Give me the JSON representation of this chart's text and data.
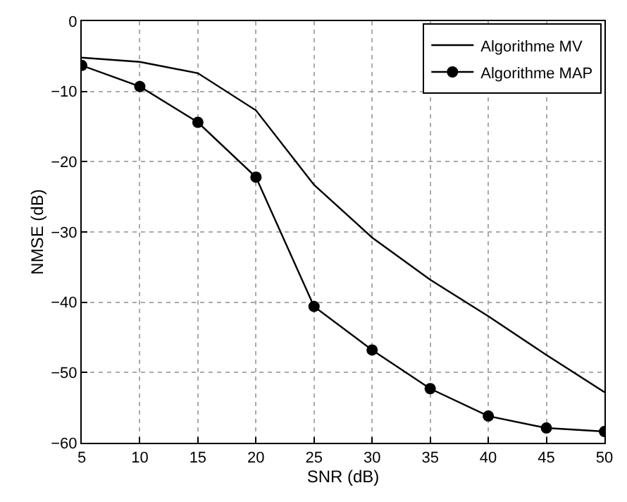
{
  "chart_data": {
    "type": "line",
    "xlabel": "SNR (dB)",
    "ylabel": "NMSE (dB)",
    "x": [
      5,
      10,
      15,
      20,
      25,
      30,
      35,
      40,
      45,
      50
    ],
    "series": [
      {
        "name": "Algorithme MV",
        "color": "#000000",
        "marker": "none",
        "values": [
          -5.2,
          -5.8,
          -7.4,
          -12.7,
          -23.3,
          -30.8,
          -36.8,
          -42,
          -47.5,
          -52.8
        ]
      },
      {
        "name": "Algorithme MAP",
        "color": "#000000",
        "marker": "circle",
        "values": [
          -6.3,
          -9.3,
          -14.4,
          -22.2,
          -40.6,
          -46.8,
          -52.3,
          -56.2,
          -57.9,
          -58.4
        ]
      }
    ],
    "xlim": [
      5,
      50
    ],
    "xticks": [
      5,
      10,
      15,
      20,
      25,
      30,
      35,
      40,
      45,
      50
    ],
    "ylim": [
      -60,
      0
    ],
    "yticks": [
      -60,
      -50,
      -40,
      -30,
      -20,
      -10,
      0
    ],
    "grid": true,
    "legend": "top right",
    "line_style": "solid"
  }
}
